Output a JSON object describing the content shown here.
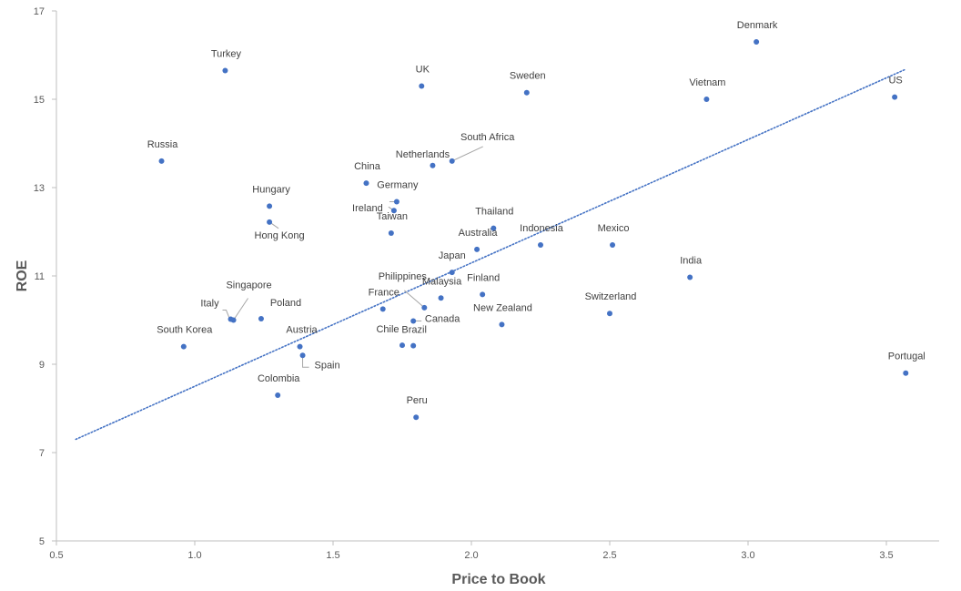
{
  "chart_data": {
    "type": "scatter",
    "title": "",
    "xlabel": "Price to Book",
    "ylabel": "ROE",
    "xlim": [
      0.5,
      3.7
    ],
    "ylim": [
      5,
      17
    ],
    "x_ticks": [
      "0.5",
      "1.0",
      "1.5",
      "2.0",
      "2.5",
      "3.0",
      "3.5"
    ],
    "y_ticks": [
      "5",
      "7",
      "9",
      "11",
      "13",
      "15",
      "17"
    ],
    "grid": false,
    "legend": "none",
    "colors": {
      "point": "#4472C4",
      "trendline": "#4472C4",
      "axis": "#BFBFBF"
    },
    "trendline": {
      "style": "dotted",
      "linear": true,
      "start": [
        0.57,
        7.3
      ],
      "end": [
        3.57,
        15.68
      ]
    },
    "points": [
      {
        "label": "Denmark",
        "x": 3.03,
        "y": 16.3
      },
      {
        "label": "Turkey",
        "x": 1.11,
        "y": 15.65
      },
      {
        "label": "UK",
        "x": 1.82,
        "y": 15.3
      },
      {
        "label": "Sweden",
        "x": 2.2,
        "y": 15.15
      },
      {
        "label": "Vietnam",
        "x": 2.85,
        "y": 15.0
      },
      {
        "label": "US",
        "x": 3.53,
        "y": 15.05
      },
      {
        "label": "Russia",
        "x": 0.88,
        "y": 13.6
      },
      {
        "label": "Netherlands",
        "x": 1.86,
        "y": 13.5
      },
      {
        "label": "South Africa",
        "x": 1.93,
        "y": 13.6
      },
      {
        "label": "China",
        "x": 1.62,
        "y": 13.1
      },
      {
        "label": "Germany",
        "x": 1.73,
        "y": 12.68
      },
      {
        "label": "Ireland",
        "x": 1.72,
        "y": 12.48
      },
      {
        "label": "Hungary",
        "x": 1.27,
        "y": 12.58
      },
      {
        "label": "Hong Kong",
        "x": 1.27,
        "y": 12.22
      },
      {
        "label": "Taiwan",
        "x": 1.71,
        "y": 11.97
      },
      {
        "label": "Thailand",
        "x": 2.08,
        "y": 12.08
      },
      {
        "label": "Australia",
        "x": 2.02,
        "y": 11.6
      },
      {
        "label": "Indonesia",
        "x": 2.25,
        "y": 11.7
      },
      {
        "label": "Mexico",
        "x": 2.51,
        "y": 11.7
      },
      {
        "label": "Japan",
        "x": 1.93,
        "y": 11.08
      },
      {
        "label": "India",
        "x": 2.79,
        "y": 10.97
      },
      {
        "label": "Finland",
        "x": 2.04,
        "y": 10.58
      },
      {
        "label": "Malaysia",
        "x": 1.89,
        "y": 10.5
      },
      {
        "label": "Philippines",
        "x": 1.83,
        "y": 10.28
      },
      {
        "label": "France",
        "x": 1.68,
        "y": 10.25
      },
      {
        "label": "Switzerland",
        "x": 2.5,
        "y": 10.15
      },
      {
        "label": "Singapore",
        "x": 1.14,
        "y": 10.0
      },
      {
        "label": "Italy",
        "x": 1.13,
        "y": 10.02
      },
      {
        "label": "Poland",
        "x": 1.24,
        "y": 10.03
      },
      {
        "label": "Canada",
        "x": 1.79,
        "y": 9.98
      },
      {
        "label": "New Zealand",
        "x": 2.11,
        "y": 9.9
      },
      {
        "label": "South Korea",
        "x": 0.96,
        "y": 9.4
      },
      {
        "label": "Austria",
        "x": 1.38,
        "y": 9.4
      },
      {
        "label": "Spain",
        "x": 1.39,
        "y": 9.2
      },
      {
        "label": "Chile",
        "x": 1.75,
        "y": 9.43
      },
      {
        "label": "Brazil",
        "x": 1.79,
        "y": 9.42
      },
      {
        "label": "Portugal",
        "x": 3.57,
        "y": 8.8
      },
      {
        "label": "Colombia",
        "x": 1.3,
        "y": 8.3
      },
      {
        "label": "Peru",
        "x": 1.8,
        "y": 7.8
      }
    ]
  }
}
